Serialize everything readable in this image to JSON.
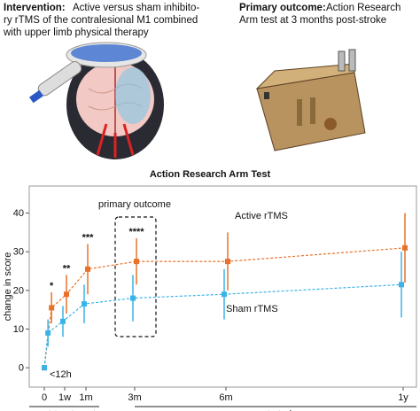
{
  "header": {
    "intervention": {
      "label": "Intervention:",
      "lines": [
        "Active versus sham inhibito-",
        "ry rTMS of the contralesional M1 combined",
        "with upper limb physical therapy"
      ]
    },
    "outcome": {
      "label": "Primary outcome:",
      "lines": [
        "Action Research",
        "Arm test at 3 months post-stroke"
      ]
    }
  },
  "chart_data": {
    "type": "line",
    "title": "Action Research Arm Test",
    "y_label": "change in score",
    "x": [
      0,
      0.5,
      7,
      30,
      90,
      180,
      365
    ],
    "series": [
      {
        "name": "Active rTMS",
        "color": "#e8722a",
        "values": [
          0,
          15.5,
          19,
          25.5,
          27.5,
          27.5,
          31
        ],
        "errors": [
          0,
          4,
          5,
          6.5,
          6,
          7.5,
          9
        ]
      },
      {
        "name": "Sham rTMS",
        "color": "#3bb3e6",
        "values": [
          0,
          9,
          12,
          16.5,
          18,
          19,
          21.5
        ],
        "errors": [
          0,
          3.5,
          4,
          5,
          6,
          6.5,
          8.5
        ]
      }
    ],
    "xlim": [
      0,
      365
    ],
    "xticks": [
      0,
      {
        "value": 7,
        "label": "1w"
      },
      {
        "value": 30,
        "label": "1m"
      },
      {
        "value": 90,
        "label": "3m"
      },
      {
        "value": 180,
        "label": "6m"
      },
      {
        "value": 365,
        "label": "1y"
      }
    ],
    "ylim": [
      -5,
      47
    ],
    "yticks": [
      0,
      10,
      20,
      30,
      40
    ],
    "significance": [
      {
        "label": "*",
        "x": 0.5
      },
      {
        "label": "**",
        "x": 7
      },
      {
        "label": "***",
        "x": 30
      },
      {
        "label": "****",
        "x": 90
      }
    ],
    "highlight": {
      "label": "primary outcome",
      "x": 90
    },
    "x_note": "<12h",
    "periods": [
      {
        "label": "post-treatment",
        "from": 0,
        "to": 30
      },
      {
        "label": "post-stroke",
        "from": 90,
        "to": 365
      }
    ]
  }
}
